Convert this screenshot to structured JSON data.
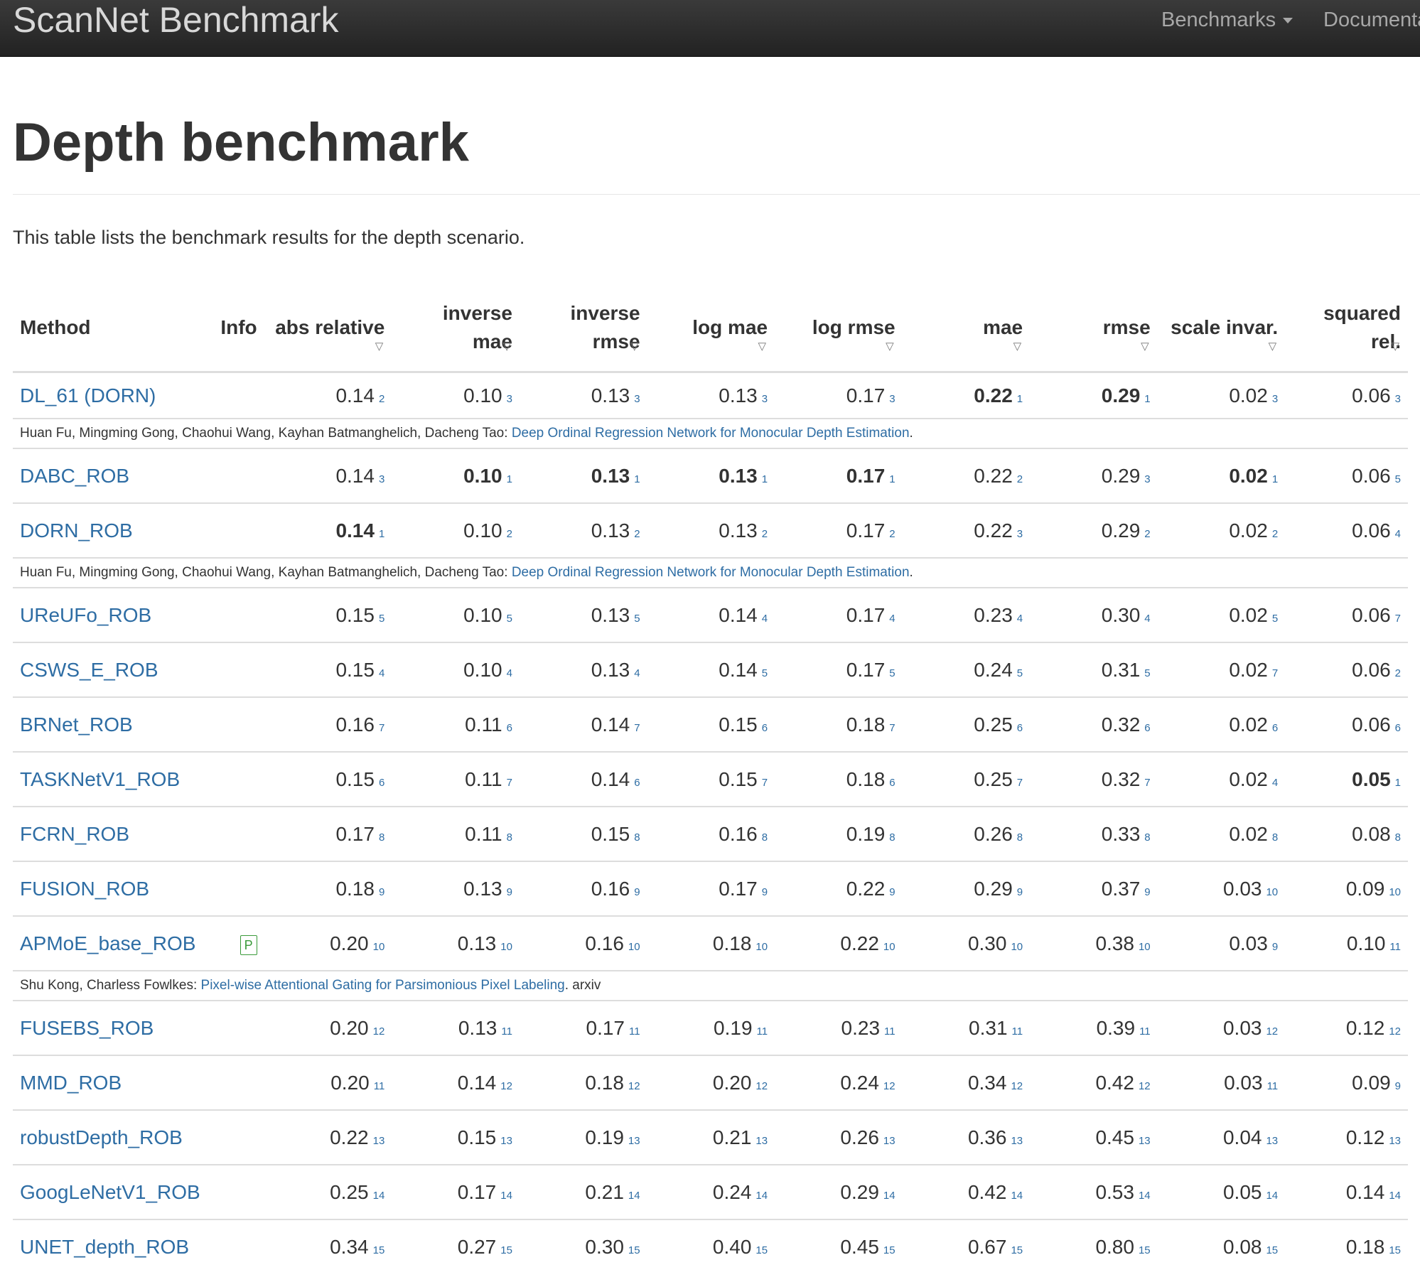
{
  "navbar": {
    "brand": "ScanNet Benchmark",
    "items": [
      {
        "label": "Benchmarks",
        "has_dropdown": true
      },
      {
        "label": "Documenta",
        "has_dropdown": false
      }
    ]
  },
  "page": {
    "title": "Depth benchmark",
    "lead": "This table lists the benchmark results for the depth scenario."
  },
  "table": {
    "headers": {
      "method": "Method",
      "info": "Info",
      "metrics": [
        {
          "line1": "abs relative",
          "line2": ""
        },
        {
          "line1": "inverse",
          "line2": "mae"
        },
        {
          "line1": "inverse",
          "line2": "rmse"
        },
        {
          "line1": "log mae",
          "line2": ""
        },
        {
          "line1": "log rmse",
          "line2": ""
        },
        {
          "line1": "mae",
          "line2": ""
        },
        {
          "line1": "rmse",
          "line2": ""
        },
        {
          "line1": "scale invar.",
          "line2": ""
        },
        {
          "line1": "squared rel.",
          "line2": ""
        }
      ],
      "sort_icon": "▽"
    },
    "rows": [
      {
        "method": "DL_61 (DORN)",
        "info": "",
        "values": [
          [
            "0.14",
            "2"
          ],
          [
            "0.10",
            "3"
          ],
          [
            "0.13",
            "3"
          ],
          [
            "0.13",
            "3"
          ],
          [
            "0.17",
            "3"
          ],
          [
            "0.22",
            "1"
          ],
          [
            "0.29",
            "1"
          ],
          [
            "0.02",
            "3"
          ],
          [
            "0.06",
            "3"
          ]
        ],
        "ref": {
          "authors": "Huan Fu, Mingming Gong, Chaohui Wang, Kayhan Batmanghelich, Dacheng Tao: ",
          "link": "Deep Ordinal Regression Network for Monocular Depth Estimation",
          "suffix": "."
        }
      },
      {
        "method": "DABC_ROB",
        "info": "",
        "values": [
          [
            "0.14",
            "3"
          ],
          [
            "0.10",
            "1"
          ],
          [
            "0.13",
            "1"
          ],
          [
            "0.13",
            "1"
          ],
          [
            "0.17",
            "1"
          ],
          [
            "0.22",
            "2"
          ],
          [
            "0.29",
            "3"
          ],
          [
            "0.02",
            "1"
          ],
          [
            "0.06",
            "5"
          ]
        ]
      },
      {
        "method": "DORN_ROB",
        "info": "",
        "values": [
          [
            "0.14",
            "1"
          ],
          [
            "0.10",
            "2"
          ],
          [
            "0.13",
            "2"
          ],
          [
            "0.13",
            "2"
          ],
          [
            "0.17",
            "2"
          ],
          [
            "0.22",
            "3"
          ],
          [
            "0.29",
            "2"
          ],
          [
            "0.02",
            "2"
          ],
          [
            "0.06",
            "4"
          ]
        ],
        "ref": {
          "authors": "Huan Fu, Mingming Gong, Chaohui Wang, Kayhan Batmanghelich, Dacheng Tao: ",
          "link": "Deep Ordinal Regression Network for Monocular Depth Estimation",
          "suffix": "."
        }
      },
      {
        "method": "UReUFo_ROB",
        "info": "",
        "values": [
          [
            "0.15",
            "5"
          ],
          [
            "0.10",
            "5"
          ],
          [
            "0.13",
            "5"
          ],
          [
            "0.14",
            "4"
          ],
          [
            "0.17",
            "4"
          ],
          [
            "0.23",
            "4"
          ],
          [
            "0.30",
            "4"
          ],
          [
            "0.02",
            "5"
          ],
          [
            "0.06",
            "7"
          ]
        ]
      },
      {
        "method": "CSWS_E_ROB",
        "info": "",
        "values": [
          [
            "0.15",
            "4"
          ],
          [
            "0.10",
            "4"
          ],
          [
            "0.13",
            "4"
          ],
          [
            "0.14",
            "5"
          ],
          [
            "0.17",
            "5"
          ],
          [
            "0.24",
            "5"
          ],
          [
            "0.31",
            "5"
          ],
          [
            "0.02",
            "7"
          ],
          [
            "0.06",
            "2"
          ]
        ]
      },
      {
        "method": "BRNet_ROB",
        "info": "",
        "values": [
          [
            "0.16",
            "7"
          ],
          [
            "0.11",
            "6"
          ],
          [
            "0.14",
            "7"
          ],
          [
            "0.15",
            "6"
          ],
          [
            "0.18",
            "7"
          ],
          [
            "0.25",
            "6"
          ],
          [
            "0.32",
            "6"
          ],
          [
            "0.02",
            "6"
          ],
          [
            "0.06",
            "6"
          ]
        ]
      },
      {
        "method": "TASKNetV1_ROB",
        "info": "",
        "values": [
          [
            "0.15",
            "6"
          ],
          [
            "0.11",
            "7"
          ],
          [
            "0.14",
            "6"
          ],
          [
            "0.15",
            "7"
          ],
          [
            "0.18",
            "6"
          ],
          [
            "0.25",
            "7"
          ],
          [
            "0.32",
            "7"
          ],
          [
            "0.02",
            "4"
          ],
          [
            "0.05",
            "1"
          ]
        ]
      },
      {
        "method": "FCRN_ROB",
        "info": "",
        "values": [
          [
            "0.17",
            "8"
          ],
          [
            "0.11",
            "8"
          ],
          [
            "0.15",
            "8"
          ],
          [
            "0.16",
            "8"
          ],
          [
            "0.19",
            "8"
          ],
          [
            "0.26",
            "8"
          ],
          [
            "0.33",
            "8"
          ],
          [
            "0.02",
            "8"
          ],
          [
            "0.08",
            "8"
          ]
        ]
      },
      {
        "method": "FUSION_ROB",
        "info": "",
        "values": [
          [
            "0.18",
            "9"
          ],
          [
            "0.13",
            "9"
          ],
          [
            "0.16",
            "9"
          ],
          [
            "0.17",
            "9"
          ],
          [
            "0.22",
            "9"
          ],
          [
            "0.29",
            "9"
          ],
          [
            "0.37",
            "9"
          ],
          [
            "0.03",
            "10"
          ],
          [
            "0.09",
            "10"
          ]
        ]
      },
      {
        "method": "APMoE_base_ROB",
        "info": "P",
        "values": [
          [
            "0.20",
            "10"
          ],
          [
            "0.13",
            "10"
          ],
          [
            "0.16",
            "10"
          ],
          [
            "0.18",
            "10"
          ],
          [
            "0.22",
            "10"
          ],
          [
            "0.30",
            "10"
          ],
          [
            "0.38",
            "10"
          ],
          [
            "0.03",
            "9"
          ],
          [
            "0.10",
            "11"
          ]
        ],
        "ref": {
          "authors": "Shu Kong, Charless Fowlkes: ",
          "link": "Pixel-wise Attentional Gating for Parsimonious Pixel Labeling",
          "suffix": ". arxiv"
        }
      },
      {
        "method": "FUSEBS_ROB",
        "info": "",
        "values": [
          [
            "0.20",
            "12"
          ],
          [
            "0.13",
            "11"
          ],
          [
            "0.17",
            "11"
          ],
          [
            "0.19",
            "11"
          ],
          [
            "0.23",
            "11"
          ],
          [
            "0.31",
            "11"
          ],
          [
            "0.39",
            "11"
          ],
          [
            "0.03",
            "12"
          ],
          [
            "0.12",
            "12"
          ]
        ]
      },
      {
        "method": "MMD_ROB",
        "info": "",
        "values": [
          [
            "0.20",
            "11"
          ],
          [
            "0.14",
            "12"
          ],
          [
            "0.18",
            "12"
          ],
          [
            "0.20",
            "12"
          ],
          [
            "0.24",
            "12"
          ],
          [
            "0.34",
            "12"
          ],
          [
            "0.42",
            "12"
          ],
          [
            "0.03",
            "11"
          ],
          [
            "0.09",
            "9"
          ]
        ]
      },
      {
        "method": "robustDepth_ROB",
        "info": "",
        "values": [
          [
            "0.22",
            "13"
          ],
          [
            "0.15",
            "13"
          ],
          [
            "0.19",
            "13"
          ],
          [
            "0.21",
            "13"
          ],
          [
            "0.26",
            "13"
          ],
          [
            "0.36",
            "13"
          ],
          [
            "0.45",
            "13"
          ],
          [
            "0.04",
            "13"
          ],
          [
            "0.12",
            "13"
          ]
        ]
      },
      {
        "method": "GoogLeNetV1_ROB",
        "info": "",
        "values": [
          [
            "0.25",
            "14"
          ],
          [
            "0.17",
            "14"
          ],
          [
            "0.21",
            "14"
          ],
          [
            "0.24",
            "14"
          ],
          [
            "0.29",
            "14"
          ],
          [
            "0.42",
            "14"
          ],
          [
            "0.53",
            "14"
          ],
          [
            "0.05",
            "14"
          ],
          [
            "0.14",
            "14"
          ]
        ]
      },
      {
        "method": "UNET_depth_ROB",
        "info": "",
        "values": [
          [
            "0.34",
            "15"
          ],
          [
            "0.27",
            "15"
          ],
          [
            "0.30",
            "15"
          ],
          [
            "0.40",
            "15"
          ],
          [
            "0.45",
            "15"
          ],
          [
            "0.67",
            "15"
          ],
          [
            "0.80",
            "15"
          ],
          [
            "0.08",
            "15"
          ],
          [
            "0.18",
            "15"
          ]
        ]
      }
    ]
  }
}
